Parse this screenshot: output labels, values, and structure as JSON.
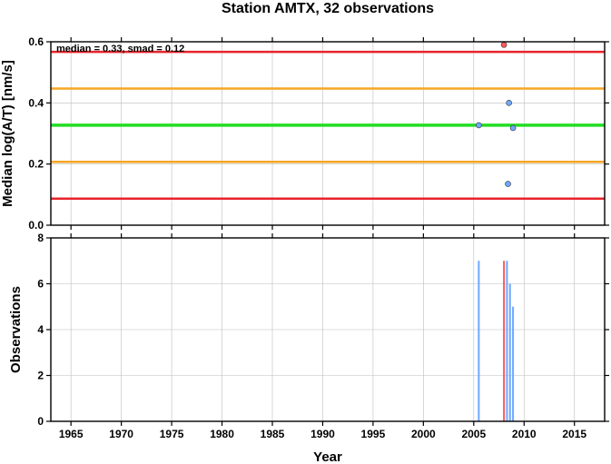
{
  "chart_data": [
    {
      "type": "scatter",
      "title": "Station AMTX, 32 observations",
      "xlabel": "",
      "ylabel": "Median log(A/T) [nm/s]",
      "annotation": "median = 0.33, smad = 0.12",
      "xlim": [
        1963,
        2018
      ],
      "ylim": [
        0,
        0.6
      ],
      "yticks": [
        {
          "value": 0.0,
          "label": "0.0"
        },
        {
          "value": 0.2,
          "label": "0.2"
        },
        {
          "value": 0.4,
          "label": "0.4"
        },
        {
          "value": 0.6,
          "label": "0.6"
        }
      ],
      "reference_lines": [
        {
          "value": 0.567,
          "color": "#e8242b"
        },
        {
          "value": 0.447,
          "color": "#f5a623"
        },
        {
          "value": 0.327,
          "color": "#22dd22"
        },
        {
          "value": 0.207,
          "color": "#f5a623"
        },
        {
          "value": 0.087,
          "color": "#e8242b"
        }
      ],
      "points": [
        {
          "x": 2005.5,
          "y": 0.327,
          "color": "#6ea8ff"
        },
        {
          "x": 2008.0,
          "y": 0.59,
          "color": "#ff5a5a"
        },
        {
          "x": 2008.5,
          "y": 0.4,
          "color": "#6ea8ff"
        },
        {
          "x": 2008.4,
          "y": 0.135,
          "color": "#6ea8ff"
        },
        {
          "x": 2008.9,
          "y": 0.318,
          "color": "#6ea8ff"
        }
      ],
      "grid": true
    },
    {
      "type": "bar",
      "xlabel": "Year",
      "ylabel": "Observations",
      "xlim": [
        1963,
        2018
      ],
      "ylim": [
        0,
        8
      ],
      "yticks": [
        {
          "value": 0,
          "label": "0"
        },
        {
          "value": 2,
          "label": "2"
        },
        {
          "value": 4,
          "label": "4"
        },
        {
          "value": 6,
          "label": "6"
        },
        {
          "value": 8,
          "label": "8"
        }
      ],
      "xticks": [
        {
          "value": 1965,
          "label": "1965"
        },
        {
          "value": 1970,
          "label": "1970"
        },
        {
          "value": 1975,
          "label": "1975"
        },
        {
          "value": 1980,
          "label": "1980"
        },
        {
          "value": 1985,
          "label": "1985"
        },
        {
          "value": 1990,
          "label": "1990"
        },
        {
          "value": 1995,
          "label": "1995"
        },
        {
          "value": 2000,
          "label": "2000"
        },
        {
          "value": 2005,
          "label": "2005"
        },
        {
          "value": 2010,
          "label": "2010"
        },
        {
          "value": 2015,
          "label": "2015"
        }
      ],
      "bars": [
        {
          "x": 2005.5,
          "value": 7,
          "color": "#6ea8ff"
        },
        {
          "x": 2008.0,
          "value": 7,
          "color": "#ff5a5a"
        },
        {
          "x": 2008.3,
          "value": 7,
          "color": "#6ea8ff"
        },
        {
          "x": 2008.6,
          "value": 6,
          "color": "#6ea8ff"
        },
        {
          "x": 2008.9,
          "value": 5,
          "color": "#6ea8ff"
        }
      ],
      "grid": true
    }
  ]
}
